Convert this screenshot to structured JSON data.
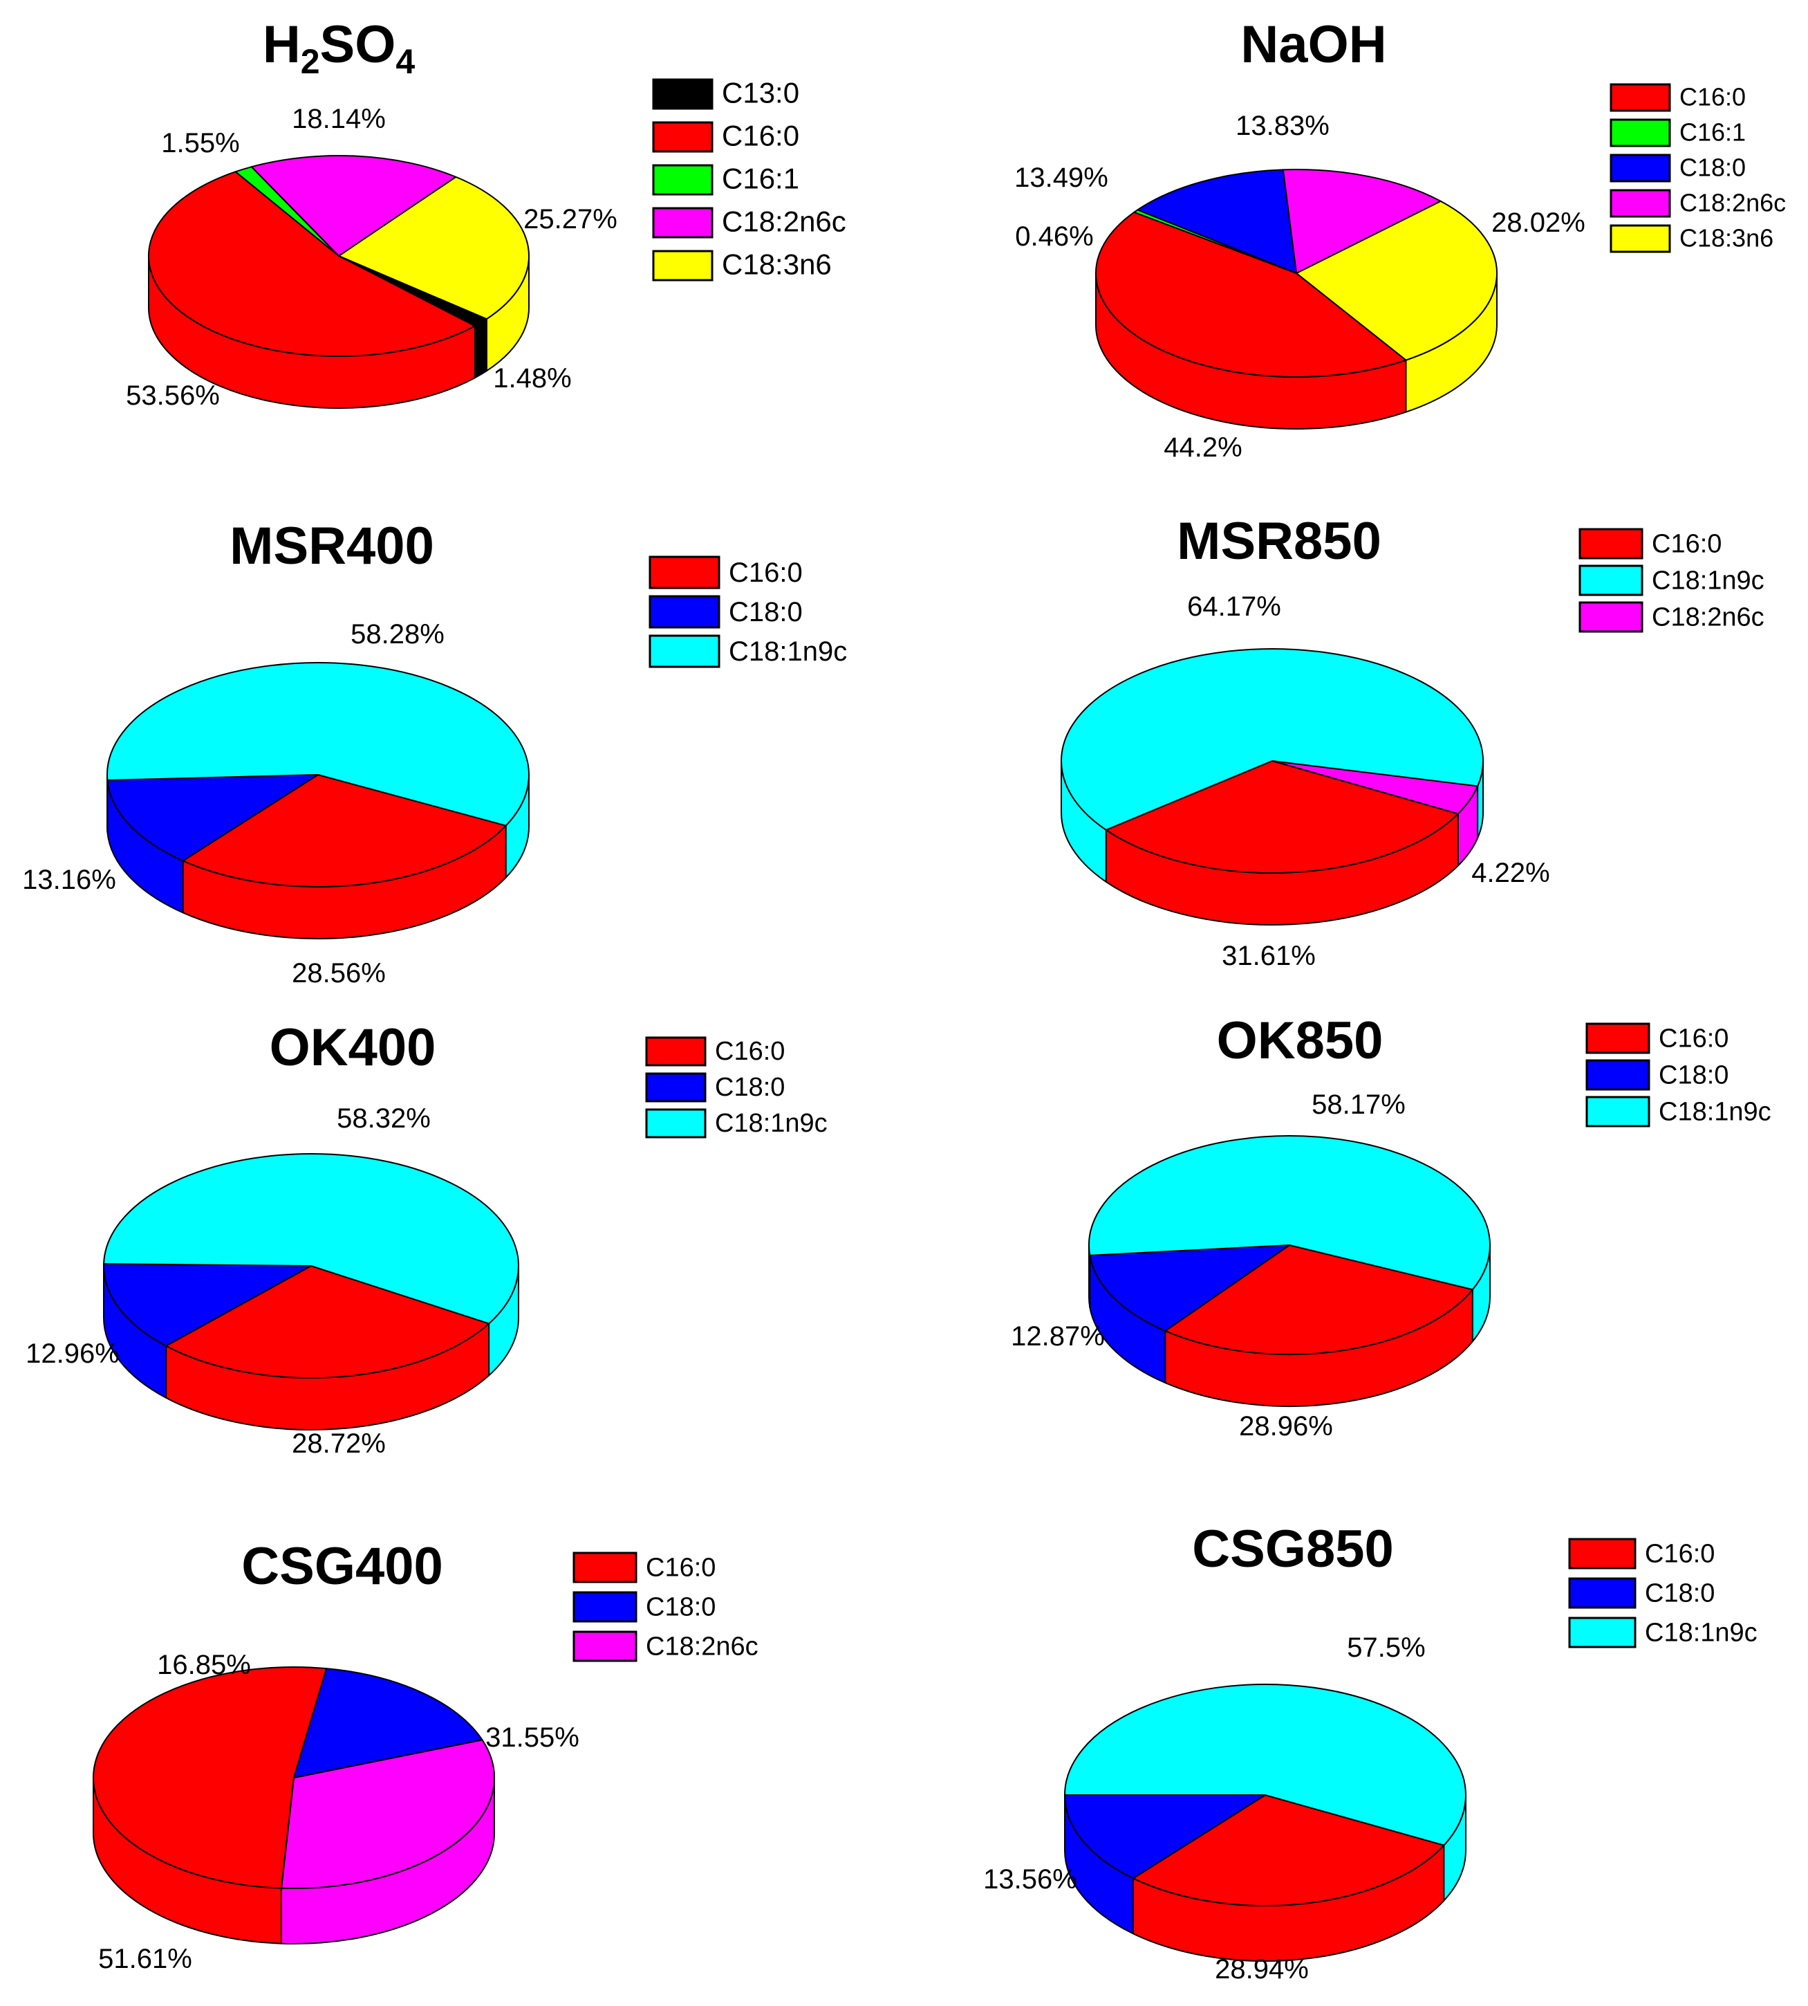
{
  "colors": {
    "C13:0": "#000000",
    "C16:0": "#ff0000",
    "C16:1": "#00ff00",
    "C18:0": "#0000ff",
    "C18:1n9c": "#00ffff",
    "C18:2n6c": "#ff00ff",
    "C18:3n6": "#ffff00"
  },
  "chart_data": [
    {
      "type": "pie",
      "title": "H2SO4",
      "title_subscripts": true,
      "legend": [
        "C13:0",
        "C16:0",
        "C16:1",
        "C18:2n6c",
        "C18:3n6"
      ],
      "slices": [
        {
          "label": "C18:3n6",
          "value": 25.27,
          "text": "25.27%"
        },
        {
          "label": "C13:0",
          "value": 1.48,
          "text": "1.48%"
        },
        {
          "label": "C16:0",
          "value": 53.56,
          "text": "53.56%"
        },
        {
          "label": "C16:1",
          "value": 1.55,
          "text": "1.55%"
        },
        {
          "label": "C18:2n6c",
          "value": 18.14,
          "text": "18.14%"
        }
      ]
    },
    {
      "type": "pie",
      "title": "NaOH",
      "legend": [
        "C16:0",
        "C16:1",
        "C18:0",
        "C18:2n6c",
        "C18:3n6"
      ],
      "slices": [
        {
          "label": "C18:3n6",
          "value": 28.02,
          "text": "28.02%"
        },
        {
          "label": "C16:0",
          "value": 44.2,
          "text": "44.2%"
        },
        {
          "label": "C16:1",
          "value": 0.46,
          "text": "0.46%"
        },
        {
          "label": "C18:0",
          "value": 13.49,
          "text": "13.49%"
        },
        {
          "label": "C18:2n6c",
          "value": 13.83,
          "text": "13.83%"
        }
      ]
    },
    {
      "type": "pie",
      "title": "MSR400",
      "legend": [
        "C16:0",
        "C18:0",
        "C18:1n9c"
      ],
      "slices": [
        {
          "label": "C16:0",
          "value": 28.56,
          "text": "28.56%"
        },
        {
          "label": "C18:0",
          "value": 13.16,
          "text": "13.16%"
        },
        {
          "label": "C18:1n9c",
          "value": 58.28,
          "text": "58.28%"
        }
      ]
    },
    {
      "type": "pie",
      "title": "MSR850",
      "legend": [
        "C16:0",
        "C18:1n9c",
        "C18:2n6c"
      ],
      "slices": [
        {
          "label": "C18:2n6c",
          "value": 4.22,
          "text": "4.22%"
        },
        {
          "label": "C16:0",
          "value": 31.61,
          "text": "31.61%"
        },
        {
          "label": "C18:1n9c",
          "value": 64.17,
          "text": "64.17%"
        }
      ]
    },
    {
      "type": "pie",
      "title": "OK400",
      "legend": [
        "C16:0",
        "C18:0",
        "C18:1n9c"
      ],
      "slices": [
        {
          "label": "C16:0",
          "value": 28.72,
          "text": "28.72%"
        },
        {
          "label": "C18:0",
          "value": 12.96,
          "text": "12.96%"
        },
        {
          "label": "C18:1n9c",
          "value": 58.32,
          "text": "58.32%"
        }
      ]
    },
    {
      "type": "pie",
      "title": "OK850",
      "legend": [
        "C16:0",
        "C18:0",
        "C18:1n9c"
      ],
      "slices": [
        {
          "label": "C16:0",
          "value": 28.96,
          "text": "28.96%"
        },
        {
          "label": "C18:0",
          "value": 12.87,
          "text": "12.87%"
        },
        {
          "label": "C18:1n9c",
          "value": 58.17,
          "text": "58.17%"
        }
      ]
    },
    {
      "type": "pie",
      "title": "CSG400",
      "legend": [
        "C16:0",
        "C18:0",
        "C18:2n6c"
      ],
      "slices": [
        {
          "label": "C18:2n6c",
          "value": 31.55,
          "text": "31.55%"
        },
        {
          "label": "C16:0",
          "value": 51.61,
          "text": "51.61%"
        },
        {
          "label": "C18:0",
          "value": 16.85,
          "text": "16.85%"
        }
      ]
    },
    {
      "type": "pie",
      "title": "CSG850",
      "legend": [
        "C16:0",
        "C18:0",
        "C18:1n9c"
      ],
      "slices": [
        {
          "label": "C16:0",
          "value": 28.94,
          "text": "28.94%"
        },
        {
          "label": "C18:0",
          "value": 13.56,
          "text": "13.56%"
        },
        {
          "label": "C18:1n9c",
          "value": 57.5,
          "text": "57.5%"
        }
      ]
    }
  ]
}
